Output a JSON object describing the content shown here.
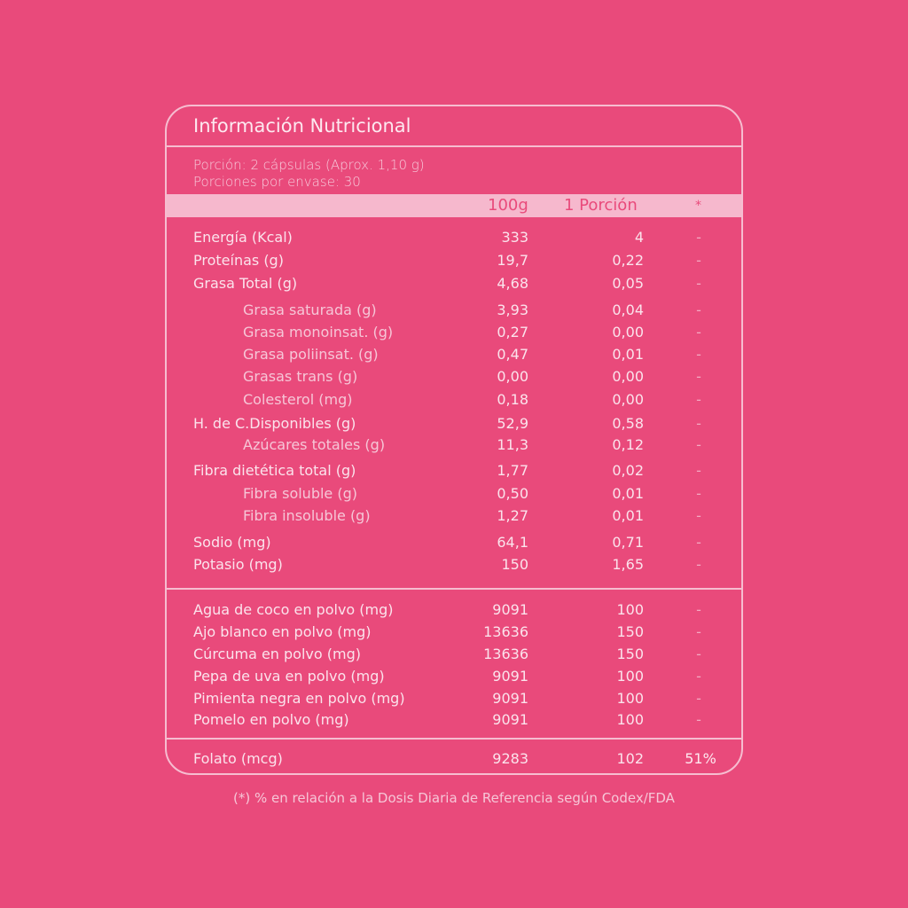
{
  "title": "Información Nutricional",
  "serving": {
    "line1": "Porción: 2 cápsulas (Aprox. 1,10 g)",
    "line2": "Porciones por envase: 30"
  },
  "header": {
    "col1": "100g",
    "col2": "1 Porción",
    "col3": "*"
  },
  "nutrients": [
    {
      "label": "Energía (Kcal)",
      "per100": "333",
      "perServing": "4",
      "dv": "-",
      "sub": false
    },
    {
      "label": "Proteínas (g)",
      "per100": "19,7",
      "perServing": "0,22",
      "dv": "-",
      "sub": false
    },
    {
      "label": "Grasa Total (g)",
      "per100": "4,68",
      "perServing": "0,05",
      "dv": "-",
      "sub": false
    },
    {
      "label": "Grasa saturada (g)",
      "per100": "3,93",
      "perServing": "0,04",
      "dv": "-",
      "sub": true
    },
    {
      "label": "Grasa monoinsat. (g)",
      "per100": "0,27",
      "perServing": "0,00",
      "dv": "-",
      "sub": true
    },
    {
      "label": "Grasa poliinsat. (g)",
      "per100": "0,47",
      "perServing": "0,01",
      "dv": "-",
      "sub": true
    },
    {
      "label": "Grasas trans (g)",
      "per100": "0,00",
      "perServing": "0,00",
      "dv": "-",
      "sub": true
    },
    {
      "label": "Colesterol (mg)",
      "per100": "0,18",
      "perServing": "0,00",
      "dv": "-",
      "sub": true
    },
    {
      "label": "H. de C.Disponibles (g)",
      "per100": "52,9",
      "perServing": "0,58",
      "dv": "-",
      "sub": false
    },
    {
      "label": "Azúcares totales (g)",
      "per100": "11,3",
      "perServing": "0,12",
      "dv": "-",
      "sub": true
    },
    {
      "label": "Fibra dietética total (g)",
      "per100": "1,77",
      "perServing": "0,02",
      "dv": "-",
      "sub": false
    },
    {
      "label": "Fibra soluble (g)",
      "per100": "0,50",
      "perServing": "0,01",
      "dv": "-",
      "sub": true
    },
    {
      "label": "Fibra insoluble (g)",
      "per100": "1,27",
      "perServing": "0,01",
      "dv": "-",
      "sub": true
    },
    {
      "label": "Sodio (mg)",
      "per100": "64,1",
      "perServing": "0,71",
      "dv": "-",
      "sub": false
    },
    {
      "label": "Potasio (mg)",
      "per100": "150",
      "perServing": "1,65",
      "dv": "-",
      "sub": false
    }
  ],
  "ingredients": [
    {
      "label": "Agua de coco en polvo (mg)",
      "per100": "9091",
      "perServing": "100",
      "dv": "-"
    },
    {
      "label": "Ajo blanco en polvo (mg)",
      "per100": "13636",
      "perServing": "150",
      "dv": "-"
    },
    {
      "label": "Cúrcuma en polvo (mg)",
      "per100": "13636",
      "perServing": "150",
      "dv": "-"
    },
    {
      "label": "Pepa de uva en polvo (mg)",
      "per100": "9091",
      "perServing": "100",
      "dv": "-"
    },
    {
      "label": "Pimienta negra en polvo (mg)",
      "per100": "9091",
      "perServing": "100",
      "dv": "-"
    },
    {
      "label": "Pomelo en polvo (mg)",
      "per100": "9091",
      "perServing": "100",
      "dv": "-"
    }
  ],
  "vitamins": [
    {
      "label": "Folato (mcg)",
      "per100": "9283",
      "perServing": "102",
      "dv": "51%"
    }
  ],
  "footnote": "(*) % en relación a la Dosis Diaria de Referencia según Codex/FDA",
  "colors": {
    "background": "#e94a7b",
    "line": "#f6bdd0",
    "header_band": "#f6b8cd"
  }
}
